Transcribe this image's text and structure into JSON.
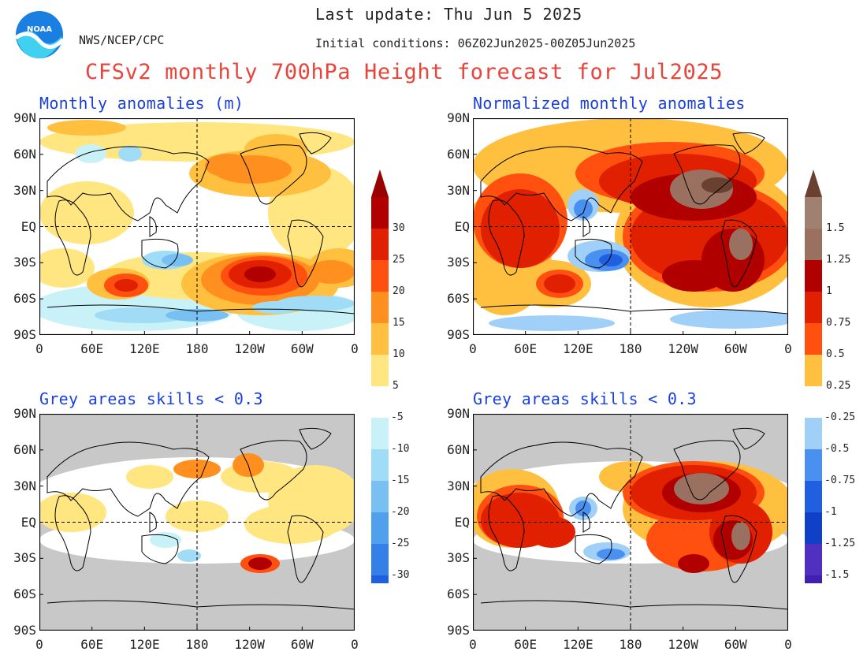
{
  "header": {
    "last_update": "Last update: Thu Jun 5 2025",
    "center": "NWS/NCEP/CPC",
    "initial_conditions": "Initial conditions: 06Z02Jun2025-00Z05Jun2025",
    "title": "CFSv2 monthly 700hPa Height forecast for Jul2025",
    "logo_text": "NOAA"
  },
  "panels": [
    {
      "title": "Monthly anomalies (m)",
      "grey_masked": false
    },
    {
      "title": "Normalized monthly anomalies",
      "grey_masked": false
    },
    {
      "title": "Grey areas skills < 0.3",
      "grey_masked": true
    },
    {
      "title": "Grey areas skills < 0.3",
      "grey_masked": true
    }
  ],
  "axes": {
    "lat_labels": [
      "90N",
      "60N",
      "30N",
      "EQ",
      "30S",
      "60S",
      "90S"
    ],
    "lon_labels": [
      "0",
      "60E",
      "120E",
      "180",
      "120W",
      "60W",
      "0"
    ]
  },
  "colorbar_left": {
    "positive_labels": [
      "30",
      "25",
      "20",
      "15",
      "10",
      "5"
    ],
    "negative_labels": [
      "-5",
      "-10",
      "-15",
      "-20",
      "-25",
      "-30"
    ],
    "positive_colors": [
      "#ffe680",
      "#ffc040",
      "#ff9020",
      "#ff5010",
      "#e02000",
      "#b00000",
      "#9a0000"
    ],
    "negative_colors": [
      "#c8f2f8",
      "#a0dcf5",
      "#78c0f2",
      "#50a0ee",
      "#3480e8",
      "#2060e0",
      "#2c50dc"
    ]
  },
  "colorbar_right": {
    "positive_labels": [
      "1.5",
      "1.25",
      "1",
      "0.75",
      "0.5",
      "0.25"
    ],
    "negative_labels": [
      "-0.25",
      "-0.5",
      "-0.75",
      "-1",
      "-1.25",
      "-1.5"
    ],
    "positive_colors": [
      "#ffc040",
      "#ff5010",
      "#e02000",
      "#b00000",
      "#9a7060",
      "#a08070",
      "#6a4030"
    ],
    "negative_colors": [
      "#a0d0f8",
      "#4a90f0",
      "#2060e0",
      "#1040c8",
      "#5030c0",
      "#4020b0",
      "#2010a0"
    ]
  },
  "colors": {
    "title_red": "#e8443a",
    "panel_title_blue": "#1a3fe0",
    "skill_mask_grey": "#c8c8c8"
  }
}
